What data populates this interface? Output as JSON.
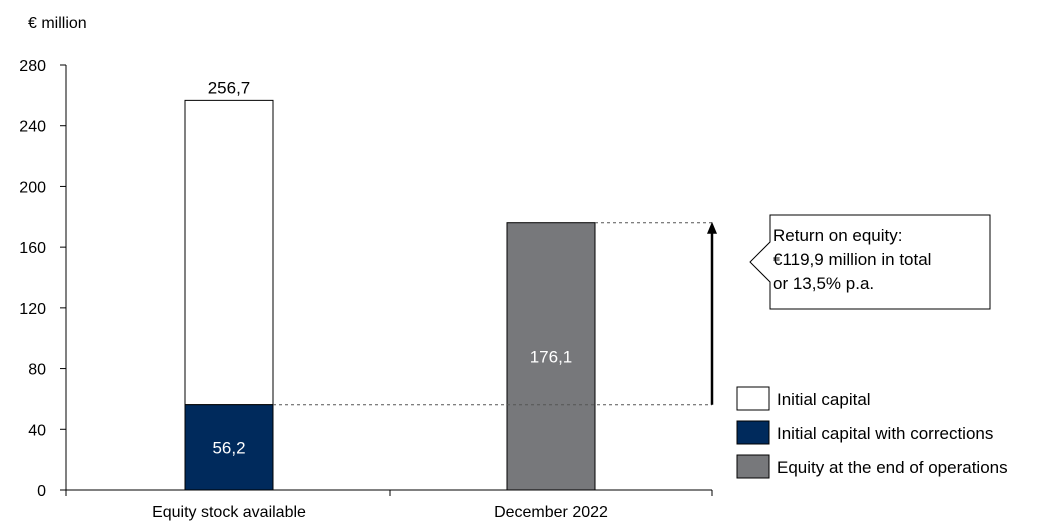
{
  "chart_data": {
    "type": "bar",
    "unit_label": "€ million",
    "categories": [
      "Equity stock available",
      "December 2022"
    ],
    "ylim": [
      0,
      280
    ],
    "yticks": [
      0,
      40,
      80,
      120,
      160,
      200,
      240,
      280
    ],
    "grid": false,
    "legend_position": "bottom-right",
    "series": [
      {
        "name": "Initial capital",
        "color": "#ffffff",
        "values": [
          256.7,
          null
        ],
        "label": "256,7"
      },
      {
        "name": "Initial capital with corrections",
        "color": "#002a5c",
        "values": [
          56.2,
          null
        ],
        "label": "56,2"
      },
      {
        "name": "Equity at the end of operations",
        "color": "#77787b",
        "values": [
          null,
          176.1
        ],
        "label": "176,1"
      }
    ],
    "annotation": {
      "lines": [
        "Return on equity:",
        "€119,9 million in total",
        "or 13,5% p.a."
      ],
      "from": 56.2,
      "to": 176.1
    }
  }
}
